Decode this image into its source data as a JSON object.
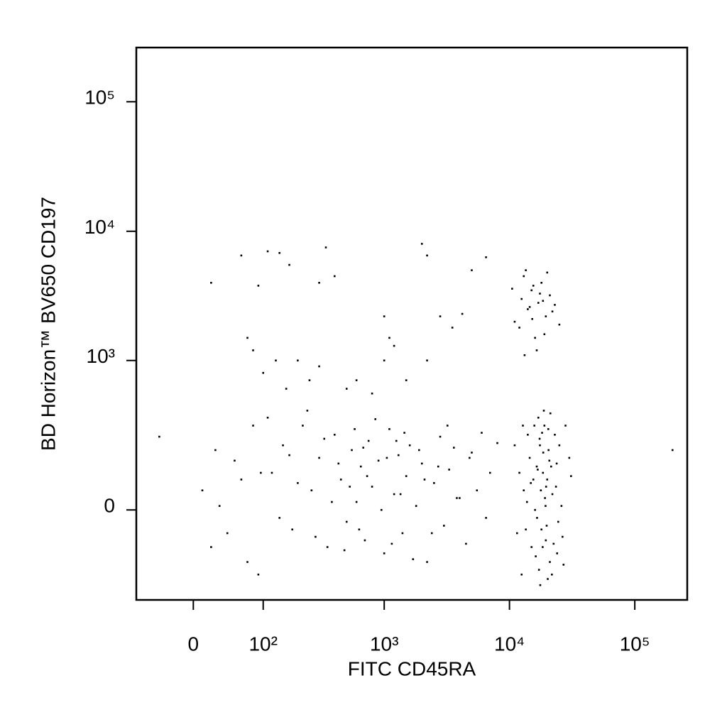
{
  "chart_data": {
    "type": "scatter",
    "x_label": "FITC CD45RA",
    "y_label": "BD Horizon™ BV650 CD197",
    "xscale": "biexponential",
    "yscale": "biexponential",
    "xlim": [
      -75,
      262144
    ],
    "ylim": [
      -335,
      262144
    ],
    "xticks": [
      0,
      {
        "value": 100,
        "label": "10²"
      },
      {
        "value": 1000,
        "label": "10³"
      },
      {
        "value": 10000,
        "label": "10⁴"
      },
      {
        "value": 100000,
        "label": "10⁵"
      }
    ],
    "yticks": [
      0,
      {
        "value": 1000,
        "label": "10³"
      },
      {
        "value": 10000,
        "label": "10⁴"
      },
      {
        "value": 100000,
        "label": "10⁵"
      }
    ],
    "color": "#000000",
    "x": [
      13000,
      15000,
      16500,
      17500,
      18000,
      19000,
      20000,
      21000,
      23000,
      26000,
      12500,
      14500,
      16000,
      17000,
      18500,
      19500,
      20500,
      22000,
      24000,
      28000,
      11000,
      13500,
      15500,
      17200,
      18200,
      19200,
      20200,
      21500,
      23500,
      30000,
      12000,
      14000,
      16200,
      17800,
      18800,
      19800,
      20800,
      22500,
      25000,
      27000,
      11500,
      13800,
      15800,
      16800,
      17600,
      18600,
      19600,
      21200,
      24500,
      31000,
      12800,
      14800,
      16600,
      17400,
      18400,
      19400,
      20400,
      21800,
      23800,
      26500,
      11000,
      12500,
      13000,
      14000,
      15000,
      16000,
      17000,
      18000,
      19500,
      21000,
      12000,
      13500,
      14500,
      15500,
      16500,
      18500,
      20000,
      22000,
      25000,
      10500,
      13200,
      15200,
      17500,
      19000,
      23000,
      120,
      150,
      180,
      220,
      260,
      300,
      350,
      400,
      450,
      500,
      550,
      600,
      650,
      700,
      750,
      800,
      900,
      1000,
      1100,
      1200,
      1300,
      1400,
      1500,
      1600,
      1800,
      2000,
      2200,
      2500,
      2800,
      3000,
      3300,
      3600,
      4000,
      4500,
      5000,
      5500,
      6000,
      6500,
      7000,
      8000,
      110,
      140,
      170,
      200,
      240,
      280,
      330,
      380,
      430,
      480,
      530,
      580,
      630,
      680,
      730,
      850,
      950,
      1050,
      1150,
      1250,
      1350,
      1450,
      1700,
      1900,
      2100,
      2400,
      2700,
      3200,
      3800,
      4800,
      -40,
      10,
      20,
      25,
      30,
      40,
      50,
      60,
      70,
      80,
      90,
      95,
      20,
      60,
      90,
      110,
      140,
      170,
      300,
      340,
      400,
      1000,
      1100,
      2000,
      2200,
      5000,
      6500,
      70,
      80,
      100,
      130,
      160,
      200,
      250,
      300,
      500,
      600,
      800,
      1000,
      1200,
      1500,
      2200,
      2800,
      3500,
      4200,
      200000
    ],
    "values": [
      50,
      -100,
      120,
      200,
      -50,
      300,
      80,
      -150,
      250,
      10,
      -200,
      150,
      0,
      350,
      100,
      -80,
      180,
      40,
      -120,
      300,
      200,
      -50,
      80,
      -180,
      260,
      30,
      -220,
      120,
      60,
      150,
      100,
      250,
      -130,
      50,
      400,
      -40,
      140,
      -90,
      200,
      -160,
      -60,
      20,
      300,
      110,
      -250,
      170,
      60,
      380,
      -30,
      90,
      300,
      70,
      -20,
      230,
      -100,
      10,
      280,
      -200,
      130,
      -70,
      2000,
      3000,
      4500,
      2500,
      3500,
      1500,
      2800,
      4000,
      2200,
      3200,
      1800,
      5000,
      2600,
      3800,
      1200,
      2900,
      4800,
      2400,
      1900,
      3600,
      1100,
      2100,
      3300,
      1600,
      2700,
      100,
      200,
      -50,
      300,
      50,
      150,
      -100,
      250,
      80,
      -30,
      180,
      20,
      120,
      -80,
      220,
      60,
      140,
      -120,
      280,
      40,
      160,
      -60,
      90,
      200,
      10,
      130,
      -150,
      70,
      240,
      -40,
      110,
      190,
      30,
      -90,
      170,
      50,
      260,
      -20,
      100,
      210,
      350,
      -20,
      160,
      70,
      400,
      -70,
      230,
      20,
      130,
      -110,
      60,
      280,
      -50,
      190,
      90,
      340,
      0,
      150,
      -90,
      220,
      40,
      260,
      -140,
      180,
      80,
      -60,
      120,
      300,
      30,
      150,
      240,
      50,
      -100,
      180,
      10,
      -60,
      140,
      80,
      -150,
      300,
      -200,
      100,
      4000,
      6500,
      3800,
      7000,
      6800,
      5500,
      4000,
      7500,
      4500,
      2200,
      1500,
      8000,
      6500,
      5000,
      6300,
      1500,
      1200,
      800,
      1000,
      600,
      1000,
      700,
      900,
      600,
      700,
      550,
      1000,
      1300,
      700,
      1000,
      2200,
      1800,
      2300,
      180
    ]
  }
}
